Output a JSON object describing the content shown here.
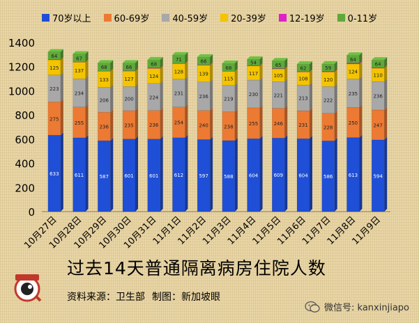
{
  "chart_data": {
    "type": "bar",
    "stacked": true,
    "title": "过去14天普通隔离病房住院人数",
    "xlabel": "",
    "ylabel": "",
    "ylim": [
      0,
      1400
    ],
    "yticks": [
      0,
      200,
      400,
      600,
      800,
      1000,
      1200,
      1400
    ],
    "grid": false,
    "legend_position": "top",
    "categories": [
      "10月27日",
      "10月28日",
      "10月29日",
      "10月30日",
      "10月31日",
      "11月1日",
      "11月2日",
      "11月3日",
      "11月4日",
      "11月5日",
      "11月6日",
      "11月7日",
      "11月8日",
      "11月9日"
    ],
    "series": [
      {
        "name": "70岁以上",
        "color": "#1f4fd6",
        "values": [
          633,
          611,
          587,
          601,
          601,
          612,
          597,
          588,
          604,
          609,
          604,
          586,
          613,
          594
        ]
      },
      {
        "name": "60-69岁",
        "color": "#ec7a33",
        "values": [
          275,
          255,
          236,
          235,
          236,
          254,
          240,
          238,
          255,
          246,
          231,
          228,
          250,
          247
        ]
      },
      {
        "name": "40-59岁",
        "color": "#a8a8a8",
        "values": [
          223,
          234,
          206,
          200,
          224,
          231,
          236,
          219,
          230,
          221,
          213,
          222,
          235,
          236
        ]
      },
      {
        "name": "20-39岁",
        "color": "#f4c400",
        "values": [
          125,
          137,
          133,
          127,
          124,
          128,
          139,
          115,
          117,
          105,
          108,
          120,
          124,
          110
        ]
      },
      {
        "name": "12-19岁",
        "color": "#e020c8",
        "values": [
          2,
          1,
          1,
          2,
          4,
          2,
          2,
          0,
          2,
          3,
          3,
          7,
          9,
          4
        ]
      },
      {
        "name": "0-11岁",
        "color": "#5fa83a",
        "values": [
          64,
          67,
          68,
          66,
          68,
          71,
          66,
          68,
          54,
          65,
          62,
          59,
          64,
          64
        ]
      }
    ]
  },
  "credits": {
    "source": "资料来源：卫生部",
    "producer": "制图：新加坡眼"
  },
  "logo": {
    "text": "新加坡眼"
  },
  "watermark": {
    "text": "微信号: kanxinjiapo"
  }
}
